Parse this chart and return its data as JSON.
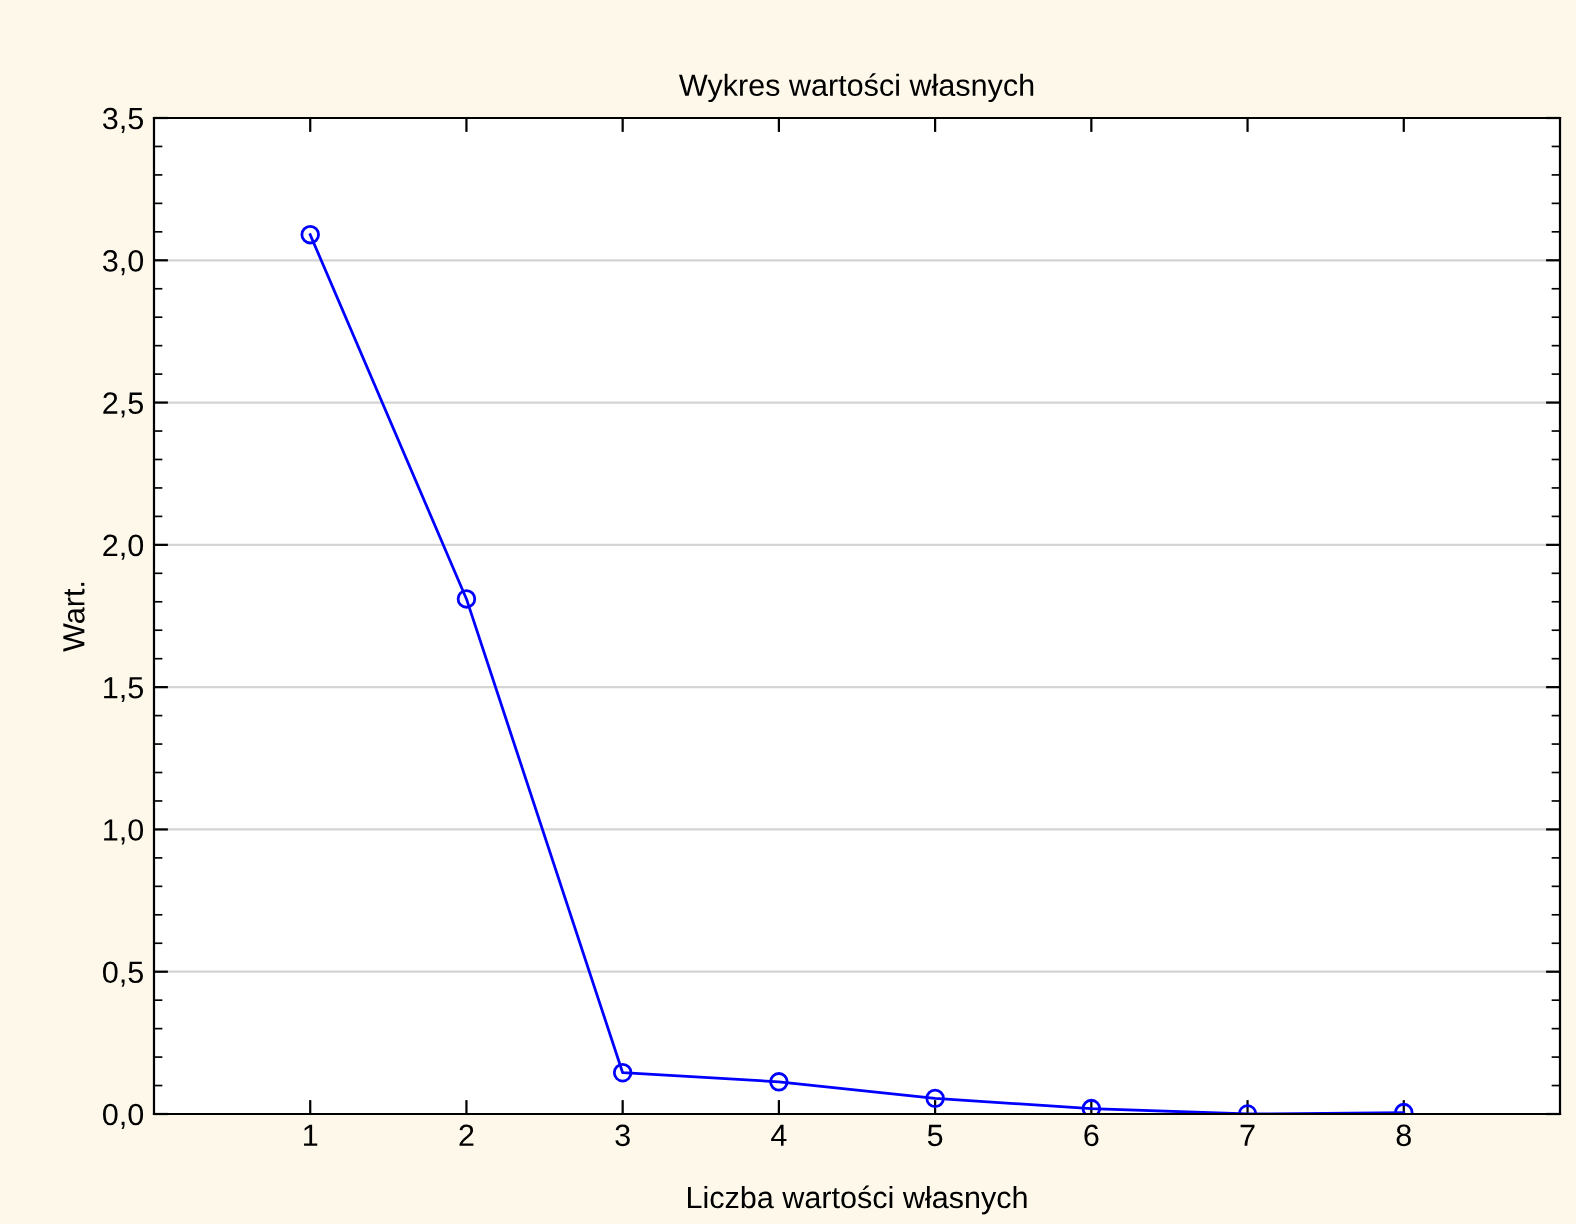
{
  "chart_data": {
    "type": "line",
    "title": "Wykres wartości własnych",
    "xlabel": "Liczba wartości własnych",
    "ylabel": "Wart.",
    "x": [
      1,
      2,
      3,
      4,
      5,
      6,
      7,
      8
    ],
    "series": [
      {
        "color": "#0000ff",
        "values": [
          3.09,
          1.81,
          0.145,
          0.113,
          0.055,
          0.019,
          0.0,
          0.005
        ]
      }
    ],
    "xlim": [
      0,
      9
    ],
    "xticks": [
      1,
      2,
      3,
      4,
      5,
      6,
      7,
      8
    ],
    "ylim": [
      0,
      3.5
    ],
    "yticks": [
      {
        "value": 0,
        "label": "0,0"
      },
      {
        "value": 0.5,
        "label": "0,5"
      },
      {
        "value": 1,
        "label": "1,0"
      },
      {
        "value": 1.5,
        "label": "1,5"
      },
      {
        "value": 2,
        "label": "2,0"
      },
      {
        "value": 2.5,
        "label": "2,5"
      },
      {
        "value": 3,
        "label": "3,0"
      },
      {
        "value": 3.5,
        "label": "3,5"
      }
    ],
    "grid": "y",
    "marker": "circle",
    "line_style": "solid"
  }
}
